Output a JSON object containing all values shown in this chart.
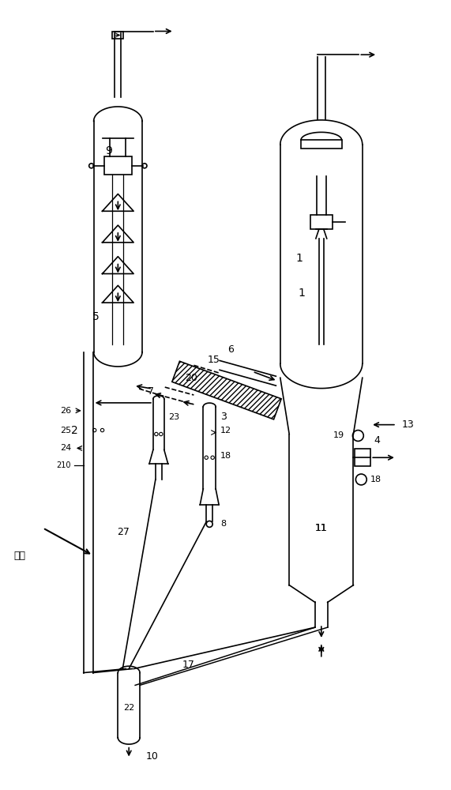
{
  "bg_color": "#ffffff",
  "line_color": "#000000",
  "fig_width": 5.71,
  "fig_height": 10.0
}
